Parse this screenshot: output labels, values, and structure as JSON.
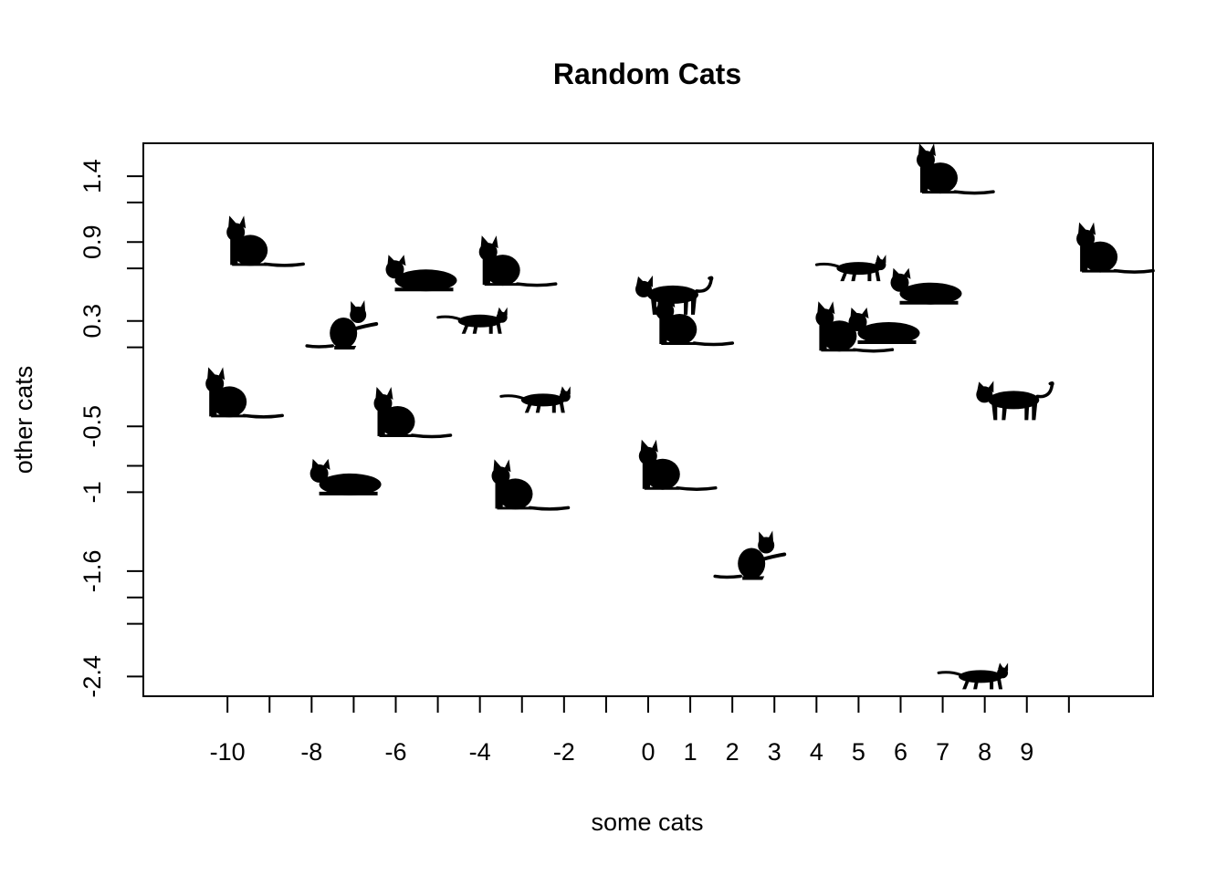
{
  "chart_data": {
    "type": "scatter",
    "title": "Random Cats",
    "xlabel": "some cats",
    "ylabel": "other cats",
    "marker": "cat-silhouette",
    "marker_color": "#000000",
    "grid": false,
    "x_ticks": [
      {
        "pos": -10,
        "label": "-10"
      },
      {
        "pos": -9,
        "label": ""
      },
      {
        "pos": -8,
        "label": "-8"
      },
      {
        "pos": -7,
        "label": ""
      },
      {
        "pos": -6,
        "label": "-6"
      },
      {
        "pos": -5,
        "label": ""
      },
      {
        "pos": -4,
        "label": "-4"
      },
      {
        "pos": -3,
        "label": ""
      },
      {
        "pos": -2,
        "label": "-2"
      },
      {
        "pos": -1,
        "label": ""
      },
      {
        "pos": 0,
        "label": "0"
      },
      {
        "pos": 1,
        "label": "1"
      },
      {
        "pos": 2,
        "label": "2"
      },
      {
        "pos": 3,
        "label": "3"
      },
      {
        "pos": 4,
        "label": "4"
      },
      {
        "pos": 5,
        "label": "5"
      },
      {
        "pos": 6,
        "label": "6"
      },
      {
        "pos": 7,
        "label": "7"
      },
      {
        "pos": 8,
        "label": "8"
      },
      {
        "pos": 9,
        "label": "9"
      },
      {
        "pos": 10,
        "label": ""
      }
    ],
    "y_ticks": [
      {
        "pos": 1.4,
        "label": "1.4"
      },
      {
        "pos": 1.2,
        "label": ""
      },
      {
        "pos": 0.9,
        "label": "0.9"
      },
      {
        "pos": 0.7,
        "label": ""
      },
      {
        "pos": 0.3,
        "label": "0.3"
      },
      {
        "pos": 0.1,
        "label": ""
      },
      {
        "pos": -0.5,
        "label": "-0.5"
      },
      {
        "pos": -0.8,
        "label": ""
      },
      {
        "pos": -1.0,
        "label": "-1"
      },
      {
        "pos": -1.6,
        "label": "-1.6"
      },
      {
        "pos": -1.8,
        "label": ""
      },
      {
        "pos": -2.0,
        "label": ""
      },
      {
        "pos": -2.4,
        "label": "-2.4"
      }
    ],
    "xlim": [
      -12,
      12
    ],
    "ylim": [
      -2.55,
      1.65
    ],
    "points": [
      {
        "x": -9.5,
        "y": 0.85,
        "pose": "sitting"
      },
      {
        "x": -5.5,
        "y": 0.65,
        "pose": "lying"
      },
      {
        "x": -3.5,
        "y": 0.7,
        "pose": "sitting"
      },
      {
        "x": 0.5,
        "y": 0.5,
        "pose": "standing"
      },
      {
        "x": 6.5,
        "y": 0.55,
        "pose": "lying"
      },
      {
        "x": 5,
        "y": 0.7,
        "pose": "walking"
      },
      {
        "x": 6.9,
        "y": 1.4,
        "pose": "sitting"
      },
      {
        "x": 10.7,
        "y": 0.8,
        "pose": "sitting"
      },
      {
        "x": -7.2,
        "y": 0.25,
        "pose": "pawing"
      },
      {
        "x": -4.0,
        "y": 0.3,
        "pose": "walking"
      },
      {
        "x": 0.7,
        "y": 0.25,
        "pose": "sitting"
      },
      {
        "x": 4.5,
        "y": 0.2,
        "pose": "sitting"
      },
      {
        "x": 5.5,
        "y": 0.25,
        "pose": "lying"
      },
      {
        "x": -10.0,
        "y": -0.3,
        "pose": "sitting"
      },
      {
        "x": -6.0,
        "y": -0.45,
        "pose": "sitting"
      },
      {
        "x": -2.5,
        "y": -0.3,
        "pose": "walking"
      },
      {
        "x": 8.6,
        "y": -0.3,
        "pose": "standing"
      },
      {
        "x": -7.3,
        "y": -0.9,
        "pose": "lying"
      },
      {
        "x": -3.2,
        "y": -1.0,
        "pose": "sitting"
      },
      {
        "x": 0.3,
        "y": -0.85,
        "pose": "sitting"
      },
      {
        "x": 2.5,
        "y": -1.5,
        "pose": "pawing"
      },
      {
        "x": 7.9,
        "y": -2.4,
        "pose": "walking"
      }
    ]
  }
}
